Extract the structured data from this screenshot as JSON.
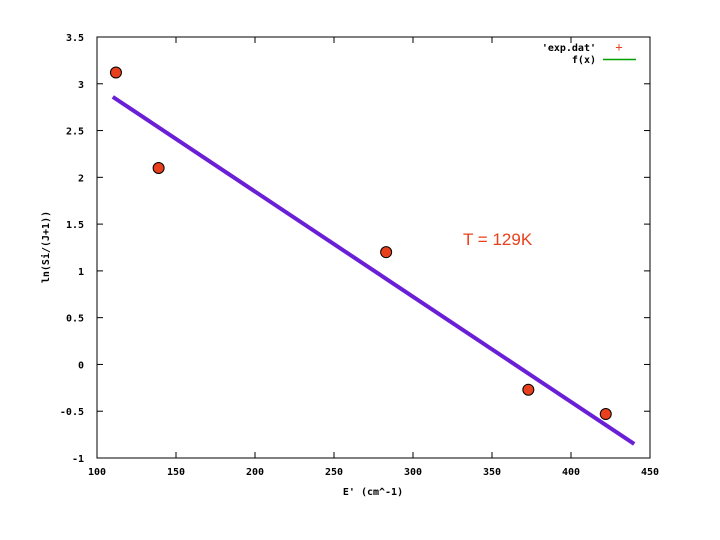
{
  "chart_data": {
    "type": "scatter",
    "xlabel": "E' (cm^-1)",
    "ylabel": "ln(Si/(J+1))",
    "xlim": [
      100,
      450
    ],
    "ylim": [
      -1,
      3.5
    ],
    "x_ticks": [
      100,
      150,
      200,
      250,
      300,
      350,
      400,
      450
    ],
    "y_ticks": [
      -1,
      -0.5,
      0,
      0.5,
      1,
      1.5,
      2,
      2.5,
      3,
      3.5
    ],
    "x_tick_labels": [
      "100",
      "150",
      "200",
      "250",
      "300",
      "350",
      "400",
      "450"
    ],
    "y_tick_labels": [
      "-1",
      "-0.5",
      "0",
      "0.5",
      "1",
      "1.5",
      "2",
      "2.5",
      "3",
      "3.5"
    ],
    "series": [
      {
        "name": "'exp.dat'",
        "kind": "points",
        "marker": "+",
        "color": "#e8401c",
        "x": [
          112,
          139,
          283,
          373,
          422
        ],
        "y": [
          3.12,
          2.1,
          1.2,
          -0.27,
          -0.53
        ]
      },
      {
        "name": "f(x)",
        "kind": "line",
        "legend_color": "#00a000",
        "color": "#6a1fd6",
        "x": [
          110,
          440
        ],
        "y": [
          2.86,
          -0.85
        ]
      }
    ],
    "annotation": "T = 129K",
    "legend_position": "top-right",
    "grid": false
  }
}
